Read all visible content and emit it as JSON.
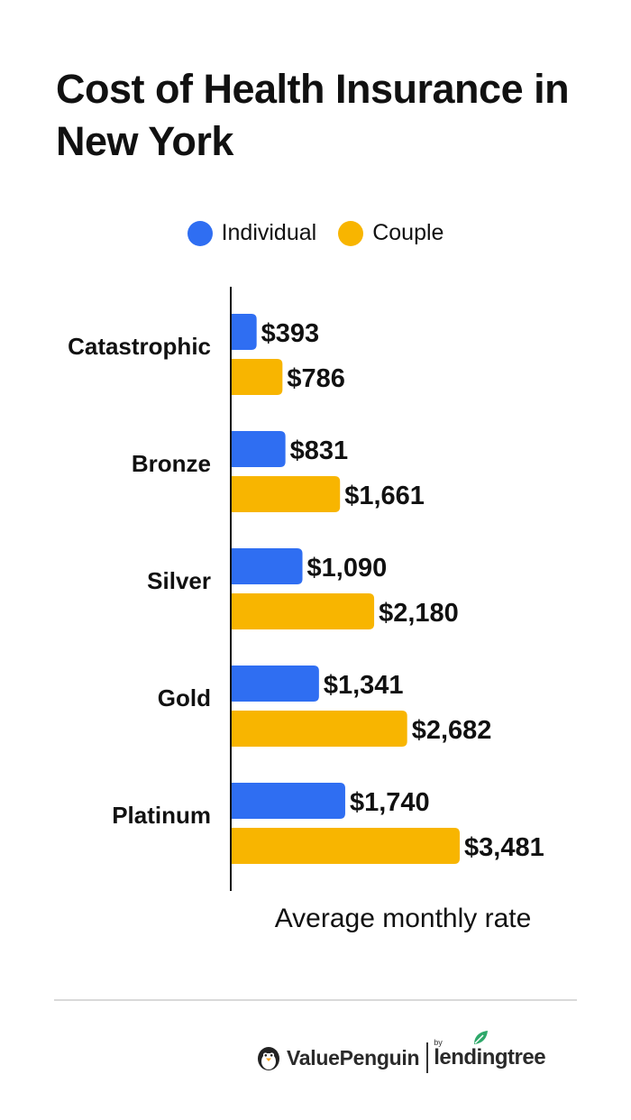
{
  "title": "Cost of Health Insurance in New York",
  "legend": [
    {
      "label": "Individual",
      "color": "#2f6ef2"
    },
    {
      "label": "Couple",
      "color": "#f8b500"
    }
  ],
  "chart_data": {
    "type": "bar",
    "orientation": "horizontal",
    "categories": [
      "Catastrophic",
      "Bronze",
      "Silver",
      "Gold",
      "Platinum"
    ],
    "series": [
      {
        "name": "Individual",
        "color": "#2f6ef2",
        "values": [
          393,
          831,
          1090,
          1341,
          1740
        ],
        "labels": [
          "$393",
          "$831",
          "$1,090",
          "$1,341",
          "$1,740"
        ]
      },
      {
        "name": "Couple",
        "color": "#f8b500",
        "values": [
          786,
          1661,
          2180,
          2682,
          3481
        ],
        "labels": [
          "$786",
          "$1,661",
          "$2,180",
          "$2,682",
          "$3,481"
        ]
      }
    ],
    "title": "Cost of Health Insurance in New York",
    "xlabel": "Average monthly rate",
    "ylabel": "",
    "xlim": [
      0,
      3481
    ],
    "grid": false,
    "legend_position": "top-center"
  },
  "footer": {
    "brand": "ValuePenguin",
    "by": "by",
    "partner": "lendingtree"
  }
}
